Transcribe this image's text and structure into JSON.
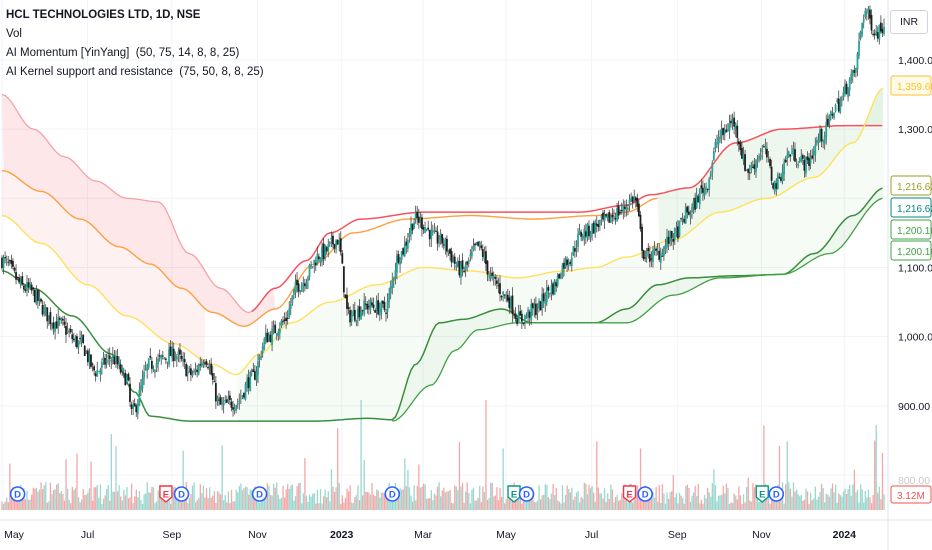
{
  "legend": {
    "title": "HCL TECHNOLOGIES LTD, 1D, NSE",
    "vol": "Vol",
    "momentum": "AI Momentum [YinYang]",
    "momentum_params": "(50, 75, 14, 8, 8, 25)",
    "kernel": "AI Kernel support and resistance",
    "kernel_params": "(75, 50, 8, 8, 25)"
  },
  "currency_button": "INR",
  "colors": {
    "up": "#26a69a",
    "down": "#ef5350",
    "resistance": "#f7525f",
    "resistance_soft": "#f4a3a8",
    "mid_orange": "#ff9f40",
    "support_yellow": "#ffe15c",
    "support_green": "#388e3c",
    "fill_red": "rgba(242,54,69,0.12)",
    "fill_green": "rgba(76,175,80,0.10)",
    "grid": "#f0f3fa",
    "earnings_red": "#f23645",
    "earnings_green": "#089981",
    "dividend_blue": "#2962ff"
  },
  "chart_data": {
    "type": "candlestick",
    "symbol": "HCL TECHNOLOGIES LTD",
    "interval": "1D",
    "exchange": "NSE",
    "x_tick_labels": [
      "May",
      "Jul",
      "Sep",
      "Nov",
      "2023",
      "Mar",
      "May",
      "Jul",
      "Sep",
      "Nov",
      "2024"
    ],
    "y_tick_labels": [
      "1,400.00",
      "1,300.00",
      "1,200.00",
      "1,100.00",
      "1,000.00",
      "900.00",
      "800.00"
    ],
    "ylim": [
      790,
      1475
    ],
    "price_badges": [
      {
        "text": "1,359.68",
        "value": 1359.68,
        "color": "#fbc02d"
      },
      {
        "text": "1,216.62",
        "value": 1216.62,
        "color": "#9e9d24"
      },
      {
        "text": "1,216.62",
        "value": 1216.62,
        "color": "#00897b"
      },
      {
        "text": "1,200.16",
        "value": 1200.16,
        "color": "#43a047"
      },
      {
        "text": "1,200.16",
        "value": 1200.16,
        "color": "#43a047"
      }
    ],
    "volume_badge": {
      "text": "3.12M",
      "color": "#ef5350"
    },
    "price_anchors": [
      {
        "d": 0,
        "v": 1110
      },
      {
        "d": 15,
        "v": 1070
      },
      {
        "d": 35,
        "v": 1020
      },
      {
        "d": 50,
        "v": 990
      },
      {
        "d": 60,
        "v": 950
      },
      {
        "d": 70,
        "v": 970
      },
      {
        "d": 80,
        "v": 940
      },
      {
        "d": 83,
        "v": 890
      },
      {
        "d": 95,
        "v": 960
      },
      {
        "d": 110,
        "v": 975
      },
      {
        "d": 122,
        "v": 945
      },
      {
        "d": 130,
        "v": 970
      },
      {
        "d": 140,
        "v": 900
      },
      {
        "d": 150,
        "v": 905
      },
      {
        "d": 160,
        "v": 940
      },
      {
        "d": 170,
        "v": 1000
      },
      {
        "d": 180,
        "v": 1020
      },
      {
        "d": 190,
        "v": 1075
      },
      {
        "d": 205,
        "v": 1120
      },
      {
        "d": 215,
        "v": 1140
      },
      {
        "d": 222,
        "v": 1030
      },
      {
        "d": 235,
        "v": 1045
      },
      {
        "d": 245,
        "v": 1040
      },
      {
        "d": 255,
        "v": 1120
      },
      {
        "d": 265,
        "v": 1170
      },
      {
        "d": 280,
        "v": 1140
      },
      {
        "d": 295,
        "v": 1095
      },
      {
        "d": 305,
        "v": 1130
      },
      {
        "d": 315,
        "v": 1080
      },
      {
        "d": 322,
        "v": 1060
      },
      {
        "d": 332,
        "v": 1025
      },
      {
        "d": 342,
        "v": 1040
      },
      {
        "d": 352,
        "v": 1070
      },
      {
        "d": 362,
        "v": 1110
      },
      {
        "d": 372,
        "v": 1150
      },
      {
        "d": 385,
        "v": 1165
      },
      {
        "d": 395,
        "v": 1180
      },
      {
        "d": 405,
        "v": 1200
      },
      {
        "d": 412,
        "v": 1115
      },
      {
        "d": 420,
        "v": 1120
      },
      {
        "d": 430,
        "v": 1145
      },
      {
        "d": 440,
        "v": 1180
      },
      {
        "d": 450,
        "v": 1215
      },
      {
        "d": 460,
        "v": 1290
      },
      {
        "d": 468,
        "v": 1310
      },
      {
        "d": 478,
        "v": 1240
      },
      {
        "d": 488,
        "v": 1270
      },
      {
        "d": 495,
        "v": 1220
      },
      {
        "d": 505,
        "v": 1265
      },
      {
        "d": 515,
        "v": 1250
      },
      {
        "d": 525,
        "v": 1290
      },
      {
        "d": 535,
        "v": 1335
      },
      {
        "d": 545,
        "v": 1375
      },
      {
        "d": 553,
        "v": 1470
      },
      {
        "d": 560,
        "v": 1440
      },
      {
        "d": 565,
        "v": 1450
      }
    ],
    "resistance_line": [
      {
        "d": 0,
        "v": 1350
      },
      {
        "d": 20,
        "v": 1300
      },
      {
        "d": 40,
        "v": 1260
      },
      {
        "d": 60,
        "v": 1225
      },
      {
        "d": 80,
        "v": 1200
      },
      {
        "d": 100,
        "v": 1195
      },
      {
        "d": 120,
        "v": 1120
      },
      {
        "d": 140,
        "v": 1070
      },
      {
        "d": 158,
        "v": 1035
      },
      {
        "d": 175,
        "v": 1070
      },
      {
        "d": 195,
        "v": 1110
      },
      {
        "d": 210,
        "v": 1150
      },
      {
        "d": 230,
        "v": 1170
      },
      {
        "d": 270,
        "v": 1180
      },
      {
        "d": 330,
        "v": 1180
      },
      {
        "d": 370,
        "v": 1180
      },
      {
        "d": 400,
        "v": 1190
      },
      {
        "d": 415,
        "v": 1205
      },
      {
        "d": 440,
        "v": 1215
      },
      {
        "d": 470,
        "v": 1280
      },
      {
        "d": 500,
        "v": 1300
      },
      {
        "d": 540,
        "v": 1305
      },
      {
        "d": 565,
        "v": 1305
      }
    ],
    "orange_line": [
      {
        "d": 0,
        "v": 1240
      },
      {
        "d": 25,
        "v": 1210
      },
      {
        "d": 50,
        "v": 1170
      },
      {
        "d": 75,
        "v": 1130
      },
      {
        "d": 95,
        "v": 1105
      },
      {
        "d": 115,
        "v": 1070
      },
      {
        "d": 135,
        "v": 1035
      },
      {
        "d": 155,
        "v": 1015
      },
      {
        "d": 175,
        "v": 1040
      },
      {
        "d": 200,
        "v": 1105
      },
      {
        "d": 225,
        "v": 1150
      },
      {
        "d": 260,
        "v": 1170
      },
      {
        "d": 300,
        "v": 1175
      },
      {
        "d": 340,
        "v": 1170
      },
      {
        "d": 380,
        "v": 1175
      },
      {
        "d": 400,
        "v": 1180
      },
      {
        "d": 420,
        "v": 1200
      }
    ],
    "support_line": [
      {
        "d": 0,
        "v": 1175
      },
      {
        "d": 25,
        "v": 1135
      },
      {
        "d": 55,
        "v": 1075
      },
      {
        "d": 80,
        "v": 1030
      },
      {
        "d": 110,
        "v": 990
      },
      {
        "d": 135,
        "v": 960
      },
      {
        "d": 150,
        "v": 945
      },
      {
        "d": 165,
        "v": 975
      },
      {
        "d": 185,
        "v": 1020
      },
      {
        "d": 210,
        "v": 1050
      },
      {
        "d": 240,
        "v": 1075
      },
      {
        "d": 270,
        "v": 1100
      },
      {
        "d": 300,
        "v": 1095
      },
      {
        "d": 330,
        "v": 1085
      },
      {
        "d": 360,
        "v": 1095
      },
      {
        "d": 380,
        "v": 1100
      },
      {
        "d": 400,
        "v": 1115
      },
      {
        "d": 430,
        "v": 1140
      },
      {
        "d": 460,
        "v": 1180
      },
      {
        "d": 490,
        "v": 1200
      },
      {
        "d": 520,
        "v": 1230
      },
      {
        "d": 545,
        "v": 1280
      },
      {
        "d": 565,
        "v": 1360
      }
    ],
    "green_line": [
      {
        "d": 0,
        "v": 1095
      },
      {
        "d": 20,
        "v": 1070
      },
      {
        "d": 45,
        "v": 1030
      },
      {
        "d": 70,
        "v": 975
      },
      {
        "d": 85,
        "v": 920
      },
      {
        "d": 95,
        "v": 885
      },
      {
        "d": 120,
        "v": 878
      },
      {
        "d": 160,
        "v": 878
      },
      {
        "d": 200,
        "v": 878
      },
      {
        "d": 235,
        "v": 882
      },
      {
        "d": 250,
        "v": 880
      },
      {
        "d": 265,
        "v": 960
      },
      {
        "d": 280,
        "v": 1020
      },
      {
        "d": 295,
        "v": 1025
      },
      {
        "d": 320,
        "v": 1040
      },
      {
        "d": 340,
        "v": 1020
      },
      {
        "d": 380,
        "v": 1020
      },
      {
        "d": 400,
        "v": 1040
      },
      {
        "d": 420,
        "v": 1075
      },
      {
        "d": 440,
        "v": 1085
      },
      {
        "d": 470,
        "v": 1088
      },
      {
        "d": 500,
        "v": 1090
      },
      {
        "d": 520,
        "v": 1120
      },
      {
        "d": 545,
        "v": 1175
      },
      {
        "d": 565,
        "v": 1215
      }
    ],
    "lower_green_line": [
      {
        "d": 250,
        "v": 878
      },
      {
        "d": 275,
        "v": 930
      },
      {
        "d": 290,
        "v": 980
      },
      {
        "d": 305,
        "v": 1010
      },
      {
        "d": 330,
        "v": 1020
      },
      {
        "d": 400,
        "v": 1020
      },
      {
        "d": 430,
        "v": 1060
      },
      {
        "d": 460,
        "v": 1085
      },
      {
        "d": 500,
        "v": 1090
      },
      {
        "d": 530,
        "v": 1120
      },
      {
        "d": 565,
        "v": 1200
      }
    ],
    "events": [
      {
        "d": 10,
        "label": "D",
        "color": "#2962ff"
      },
      {
        "d": 105,
        "label": "E",
        "color": "#f23645"
      },
      {
        "d": 115,
        "label": "D",
        "color": "#2962ff"
      },
      {
        "d": 165,
        "label": "D",
        "color": "#2962ff"
      },
      {
        "d": 250,
        "label": "D",
        "color": "#2962ff"
      },
      {
        "d": 328,
        "label": "E",
        "color": "#089981"
      },
      {
        "d": 336,
        "label": "D",
        "color": "#2962ff"
      },
      {
        "d": 402,
        "label": "E",
        "color": "#f23645"
      },
      {
        "d": 412,
        "label": "D",
        "color": "#2962ff"
      },
      {
        "d": 487,
        "label": "E",
        "color": "#089981"
      },
      {
        "d": 496,
        "label": "D",
        "color": "#2962ff"
      }
    ],
    "days": 566
  }
}
